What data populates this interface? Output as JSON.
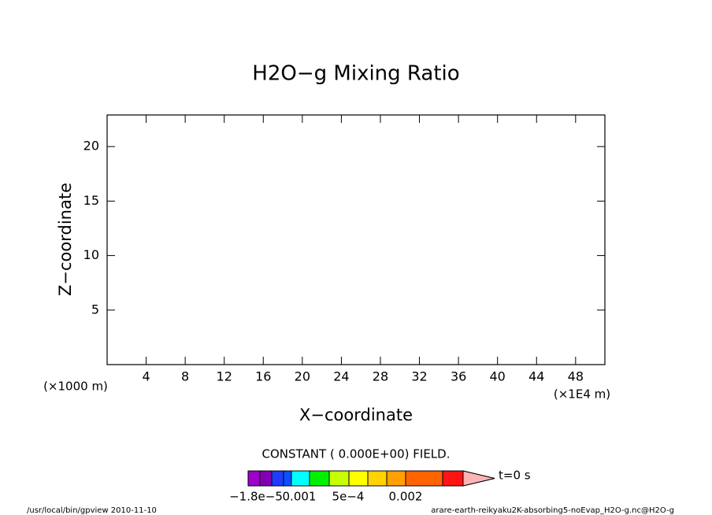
{
  "chart_data": {
    "type": "contour",
    "title": "H2O−g Mixing Ratio",
    "x_label": "X−coordinate",
    "y_label": "Z−coordinate",
    "x_unit": "(×1E4 m)",
    "y_unit": "(×1000 m)",
    "xlim": [
      0,
      51
    ],
    "xticks": [
      4,
      8,
      12,
      16,
      20,
      24,
      28,
      32,
      36,
      40,
      44,
      48
    ],
    "ylim": [
      0,
      22.9
    ],
    "yticks": [
      5,
      10,
      15,
      20
    ],
    "message": "CONSTANT ( 0.000E+00) FIELD.",
    "time_label": "t=0 s",
    "colorbar": {
      "colors": [
        "#a000c8",
        "#8200b4",
        "#1e3cff",
        "#0a50ff",
        "#00ffff",
        "#00f000",
        "#c8ff00",
        "#ffff00",
        "#ffd200",
        "#ffa000",
        "#ff6400",
        "#ff1414",
        "#ff6e6e",
        "#ffb4b4"
      ],
      "labels": [
        "−1.8e−5",
        "0.001",
        "5e−4",
        "0.002"
      ]
    },
    "footer_left": "/usr/local/bin/gpview   2010-11-10",
    "footer_right": "arare-earth-reikyaku2K-absorbing5-noEvap_H2O-g.nc@H2O-g"
  }
}
